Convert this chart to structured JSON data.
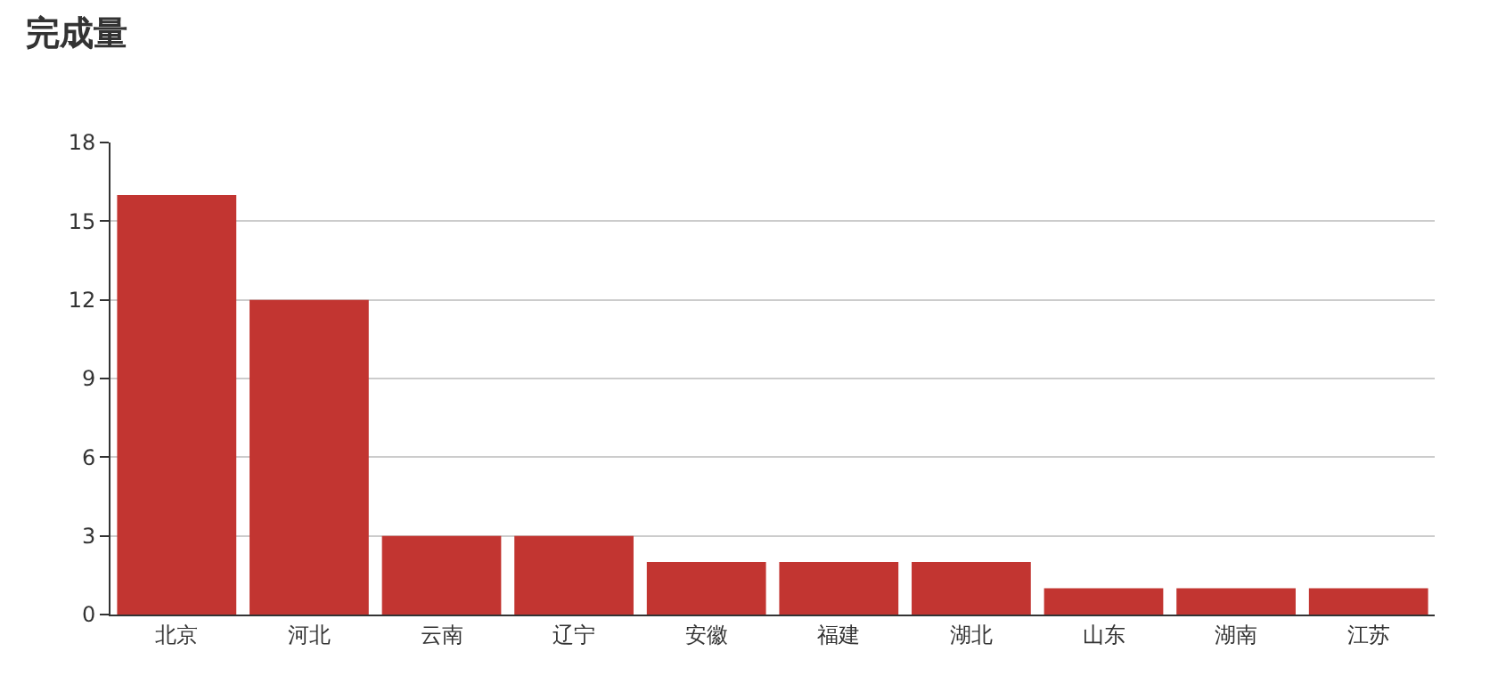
{
  "chart_data": {
    "type": "bar",
    "title": "完成量",
    "categories": [
      "北京",
      "河北",
      "云南",
      "辽宁",
      "安徽",
      "福建",
      "湖北",
      "山东",
      "湖南",
      "江苏"
    ],
    "values": [
      16,
      12,
      3,
      3,
      2,
      2,
      2,
      1,
      1,
      1
    ],
    "color": "#c23531",
    "ylim": [
      0,
      18
    ],
    "yticks": [
      0,
      3,
      6,
      9,
      12,
      15,
      18
    ],
    "grid": "y"
  }
}
